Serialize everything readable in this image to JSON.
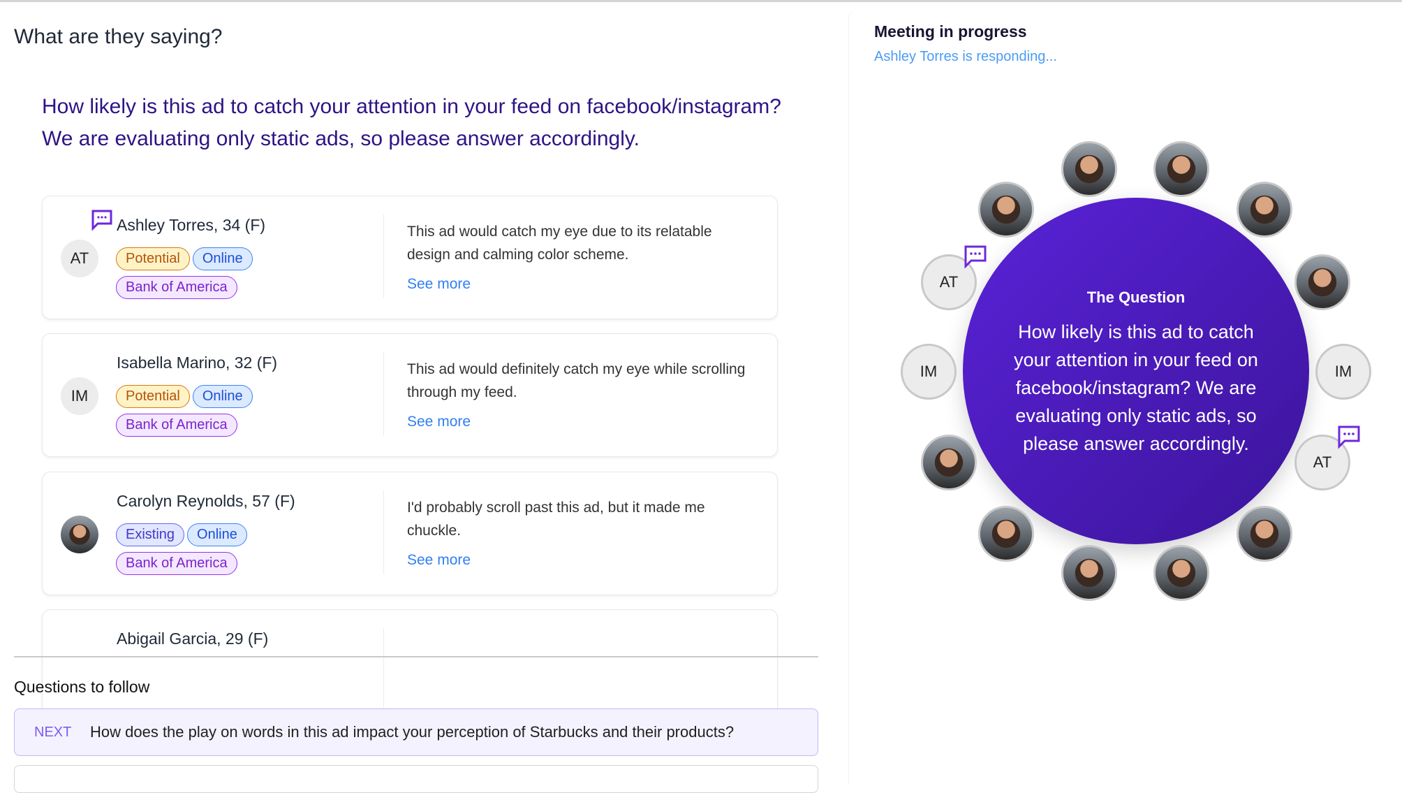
{
  "main": {
    "title": "What are they saying?",
    "question": "How likely is this ad to catch your attention in your feed on facebook/instagram? We are evaluating only static ads, so please answer accordingly.",
    "see_more": "See more",
    "responses": [
      {
        "initials": "AT",
        "name": "Ashley Torres, 34 (F)",
        "tags": [
          "Potential",
          "Online",
          "Bank of America"
        ],
        "text": "This ad would catch my eye due to its relatable design and calming color scheme.",
        "speaking": true
      },
      {
        "initials": "IM",
        "name": "Isabella Marino, 32 (F)",
        "tags": [
          "Potential",
          "Online",
          "Bank of America"
        ],
        "text": "This ad would definitely catch my eye while scrolling through my feed."
      },
      {
        "initials": "",
        "name": "Carolyn Reynolds, 57 (F)",
        "tags": [
          "Existing",
          "Online",
          "Bank of America"
        ],
        "text": "I'd probably scroll past this ad, but it made me chuckle."
      },
      {
        "initials": "",
        "name": "Abigail Garcia, 29 (F)"
      }
    ]
  },
  "follow": {
    "title": "Questions to follow",
    "next_label": "NEXT",
    "next_question": "How does the play on words in this ad impact your perception of Starbucks and their products?"
  },
  "meeting": {
    "title": "Meeting in progress",
    "status": "Ashley Torres is responding...",
    "question_label": "The Question",
    "question": "How likely is this ad to catch your attention in your feed on facebook/instagram? We are evaluating only static ads, so please answer accordingly.",
    "participants": [
      "photo",
      "photo",
      "photo",
      "photo",
      "AT",
      "photo",
      "IM",
      "IM",
      "photo",
      "AT",
      "photo",
      "photo",
      "photo",
      "photo"
    ]
  },
  "colors": {
    "accent": "#5a22d8",
    "question_text": "#2e1385",
    "link": "#2f7ff5"
  }
}
